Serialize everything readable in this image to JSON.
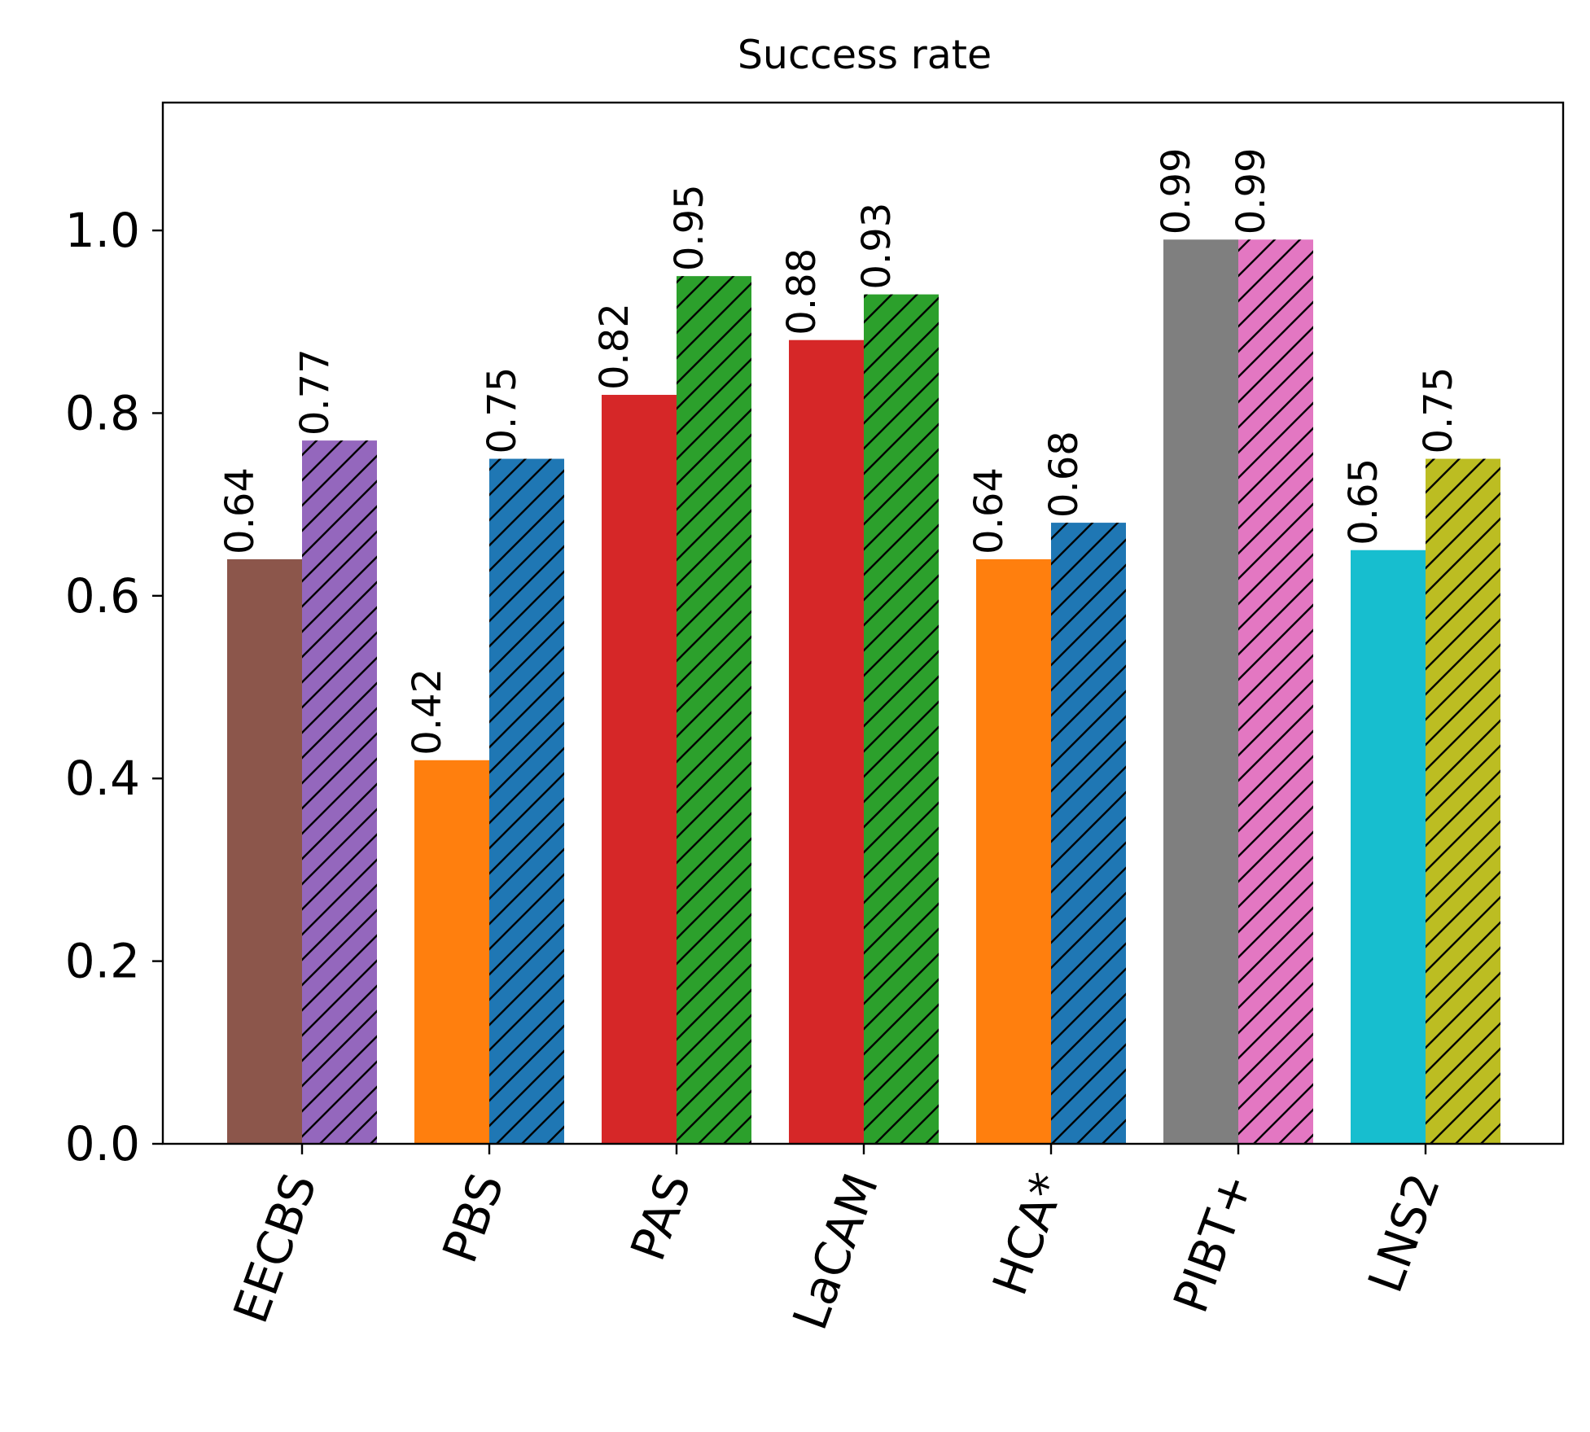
{
  "chart_data": {
    "type": "bar",
    "title": "Success rate",
    "xlabel": "",
    "ylabel": "",
    "ylim": [
      0,
      1.14
    ],
    "yticks": [
      "0.0",
      "0.2",
      "0.4",
      "0.6",
      "0.8",
      "1.0"
    ],
    "ytick_values": [
      0,
      0.2,
      0.4,
      0.6,
      0.8,
      1.0
    ],
    "grid": false,
    "legend": "none",
    "categories": [
      "EECBS",
      "PBS",
      "PAS",
      "LaCAM",
      "HCA*",
      "PIBT+",
      "LNS2"
    ],
    "series": [
      {
        "name": "plain",
        "hatch": "none",
        "values": [
          0.64,
          0.42,
          0.82,
          0.88,
          0.64,
          0.99,
          0.65
        ],
        "labels": [
          "0.64",
          "0.42",
          "0.82",
          "0.88",
          "0.64",
          "0.99",
          "0.65"
        ],
        "colors": [
          "#8c564b",
          "#ff7f0e",
          "#d62728",
          "#d62728",
          "#ff7f0e",
          "#7f7f7f",
          "#17becf"
        ]
      },
      {
        "name": "hatched",
        "hatch": "diagonal",
        "values": [
          0.77,
          0.75,
          0.95,
          0.93,
          0.68,
          0.99,
          0.75
        ],
        "labels": [
          "0.77",
          "0.75",
          "0.95",
          "0.93",
          "0.68",
          "0.99",
          "0.75"
        ],
        "colors": [
          "#9467bd",
          "#1f77b4",
          "#2ca02c",
          "#2ca02c",
          "#1f77b4",
          "#e377c2",
          "#bcbd22"
        ]
      }
    ]
  }
}
